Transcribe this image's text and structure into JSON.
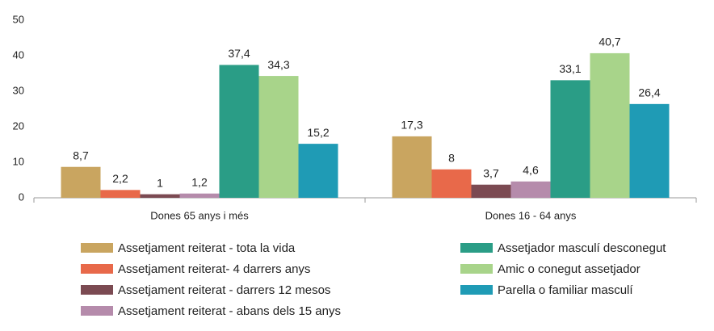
{
  "chart_data": {
    "type": "bar",
    "categories": [
      "Dones 65 anys i més",
      "Dones 16 - 64 anys"
    ],
    "series": [
      {
        "name": "Assetjament reiterat - tota la vida",
        "color": "#c9a560",
        "values": [
          8.7,
          17.3
        ],
        "value_labels": [
          "8,7",
          "17,3"
        ]
      },
      {
        "name": "Assetjament reiterat- 4 darrers anys",
        "color": "#e8694a",
        "values": [
          2.2,
          8
        ],
        "value_labels": [
          "2,2",
          "8"
        ]
      },
      {
        "name": "Assetjament reiterat - darrers 12 mesos",
        "color": "#7b4a52",
        "values": [
          1,
          3.7
        ],
        "value_labels": [
          "1",
          "3,7"
        ]
      },
      {
        "name": "Assetjament reiterat - abans dels 15 anys",
        "color": "#b58bab",
        "values": [
          1.2,
          4.6
        ],
        "value_labels": [
          "1,2",
          "4,6"
        ]
      },
      {
        "name": "Assetjador masculí desconegut",
        "color": "#2a9d86",
        "values": [
          37.4,
          33.1
        ],
        "value_labels": [
          "37,4",
          "33,1"
        ]
      },
      {
        "name": "Amic o conegut assetjador",
        "color": "#a8d48a",
        "values": [
          34.3,
          40.7
        ],
        "value_labels": [
          "34,3",
          "40,7"
        ]
      },
      {
        "name": "Parella o familiar masculí",
        "color": "#1f9bb5",
        "values": [
          15.2,
          26.4
        ],
        "value_labels": [
          "15,2",
          "26,4"
        ]
      }
    ],
    "ylim": [
      0,
      50
    ],
    "yticks": [
      0,
      10,
      20,
      30,
      40,
      50
    ],
    "grid": false
  }
}
